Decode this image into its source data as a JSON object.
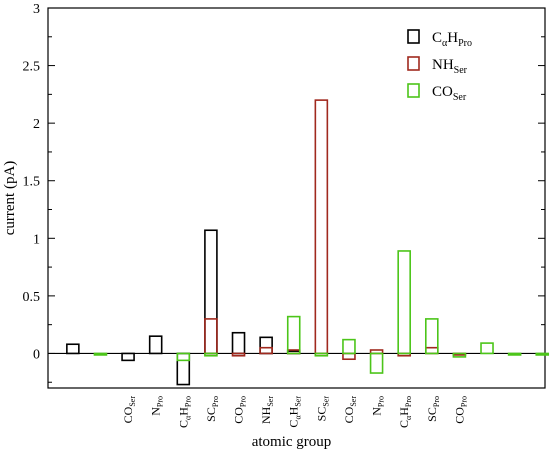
{
  "chart_data": {
    "type": "bar",
    "xlabel": "atomic group",
    "ylabel": "current (pA)",
    "ylim": [
      -0.3,
      3
    ],
    "yticks": [
      0,
      0.5,
      1,
      1.5,
      2,
      2.5,
      3
    ],
    "ytick_labels": [
      "0",
      "0.5",
      "1",
      "1.5",
      "2",
      "2.5",
      "3"
    ],
    "x_positions": [
      0,
      1,
      2,
      3,
      4,
      5,
      6,
      7,
      8,
      9,
      10,
      11,
      12,
      13,
      14,
      15,
      16,
      17
    ],
    "xlim": [
      -0.9,
      17.1
    ],
    "category_labels": [
      {
        "x": 2,
        "main": "CO",
        "sub": "Ser",
        "inner": ""
      },
      {
        "x": 3,
        "main": "N",
        "sub": "Pro",
        "inner": ""
      },
      {
        "x": 4,
        "main": "C",
        "sub": "α",
        "inner": "H",
        "sub2": "Pro"
      },
      {
        "x": 5,
        "main": "SC",
        "sub": "Pro",
        "inner": ""
      },
      {
        "x": 6,
        "main": "CO",
        "sub": "Pro",
        "inner": ""
      },
      {
        "x": 7,
        "main": "NH",
        "sub": "Ser",
        "inner": ""
      },
      {
        "x": 8,
        "main": "C",
        "sub": "α",
        "inner": "H",
        "sub2": "Ser"
      },
      {
        "x": 9,
        "main": "SC",
        "sub": "Ser",
        "inner": ""
      },
      {
        "x": 10,
        "main": "CO",
        "sub": "Ser",
        "inner": ""
      },
      {
        "x": 11,
        "main": "N",
        "sub": "Pro",
        "inner": ""
      },
      {
        "x": 12,
        "main": "C",
        "sub": "α",
        "inner": "H",
        "sub2": "Pro"
      },
      {
        "x": 13,
        "main": "SC",
        "sub": "Pro",
        "inner": ""
      },
      {
        "x": 14,
        "main": "CO",
        "sub": "Pro",
        "inner": ""
      }
    ],
    "series": [
      {
        "name": "CαHPro",
        "legend_main": "C",
        "legend_sub": "α",
        "legend_mid": "H",
        "legend_sub2": "Pro",
        "color": "#000000",
        "values": [
          0.08,
          null,
          -0.06,
          0.15,
          -0.27,
          1.07,
          0.18,
          0.14,
          0.02,
          null,
          null,
          null,
          null,
          null,
          null,
          null,
          null,
          null
        ]
      },
      {
        "name": "NHSer",
        "legend_main": "NH",
        "legend_sub": "Ser",
        "legend_mid": "",
        "legend_sub2": "",
        "color": "#a0291e",
        "values": [
          null,
          null,
          null,
          null,
          null,
          0.3,
          -0.02,
          0.05,
          0.03,
          2.2,
          -0.05,
          0.03,
          -0.02,
          0.05,
          -0.01,
          null,
          null,
          null
        ]
      },
      {
        "name": "COSer",
        "legend_main": "CO",
        "legend_sub": "Ser",
        "legend_mid": "",
        "legend_sub2": "",
        "color": "#4cc519",
        "values": [
          null,
          0.0,
          null,
          null,
          -0.06,
          -0.02,
          null,
          null,
          0.32,
          -0.02,
          0.12,
          -0.17,
          0.89,
          0.3,
          -0.03,
          0.09,
          0.0,
          0.0
        ]
      }
    ],
    "legend_position": "top-right",
    "grid": false
  }
}
